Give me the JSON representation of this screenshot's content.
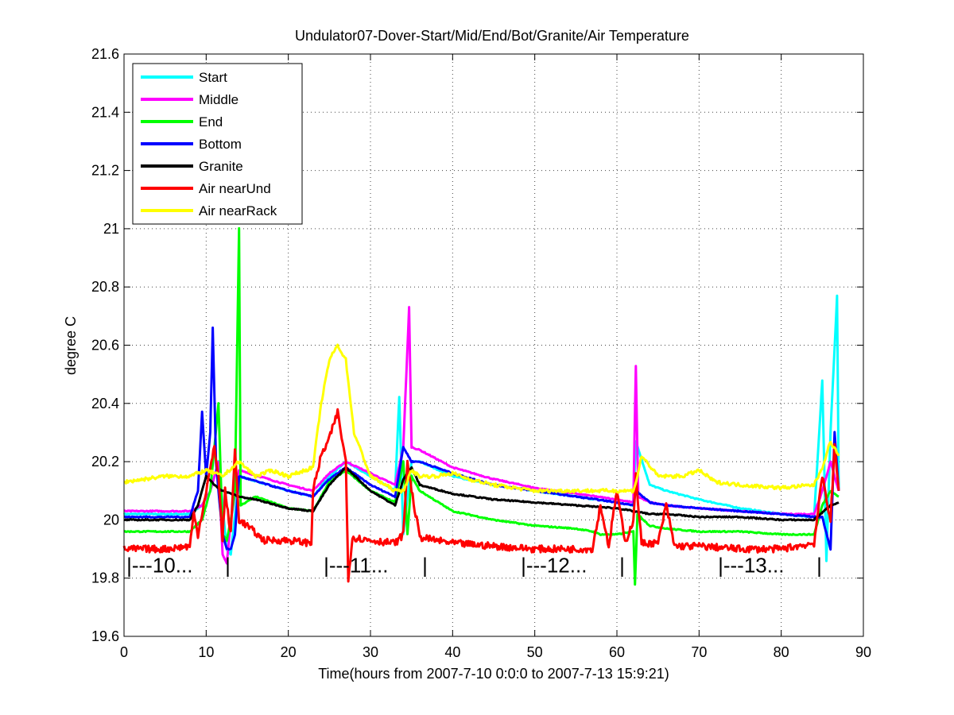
{
  "chart_data": {
    "type": "line",
    "title": "Undulator07-Dover-Start/Mid/End/Bot/Granite/Air Temperature",
    "xlabel": "Time(hours from 2007-7-10 0:0:0 to 2007-7-13 15:9:21)",
    "ylabel": "degree C",
    "xlim": [
      0,
      90
    ],
    "ylim": [
      19.6,
      21.6
    ],
    "xticks": [
      0,
      10,
      20,
      30,
      40,
      50,
      60,
      70,
      80,
      90
    ],
    "yticks": [
      19.6,
      19.8,
      20,
      20.2,
      20.4,
      20.6,
      20.8,
      21,
      21.2,
      21.4,
      21.6
    ],
    "grid": true,
    "legend_position": "top-left",
    "day_markers": [
      {
        "label": "|---10...",
        "x": 0.3,
        "y": 19.82
      },
      {
        "label": "|",
        "x": 12.3,
        "y": 19.82
      },
      {
        "label": "|---11...",
        "x": 24.3,
        "y": 19.82
      },
      {
        "label": "|",
        "x": 36.3,
        "y": 19.82
      },
      {
        "label": "|---12...",
        "x": 48.3,
        "y": 19.82
      },
      {
        "label": "|",
        "x": 60.3,
        "y": 19.82
      },
      {
        "label": "|---13...",
        "x": 72.3,
        "y": 19.82
      },
      {
        "label": "|",
        "x": 84.3,
        "y": 19.82
      }
    ],
    "series": [
      {
        "name": "Start",
        "color": "#00ffff",
        "x": [
          0,
          8,
          9.5,
          10.5,
          11.5,
          12,
          12.5,
          13,
          14,
          20,
          23,
          25,
          27,
          30,
          33,
          33.5,
          34,
          35,
          36,
          40,
          45,
          50,
          55,
          60,
          62,
          62.3,
          64,
          66,
          70,
          75,
          80,
          84,
          85,
          85.5,
          86,
          86.8,
          87
        ],
        "y": [
          20.02,
          20.02,
          20.05,
          20.1,
          20.2,
          20.05,
          19.9,
          19.88,
          20.15,
          20.1,
          20.08,
          20.15,
          20.2,
          20.15,
          20.1,
          20.42,
          19.95,
          20.2,
          20.2,
          20.15,
          20.12,
          20.1,
          20.08,
          20.06,
          20.05,
          20.27,
          20.12,
          20.1,
          20.07,
          20.04,
          20.02,
          20.01,
          20.48,
          19.86,
          20.3,
          20.77,
          20.1
        ]
      },
      {
        "name": "Middle",
        "color": "#ff00ff",
        "x": [
          0,
          8,
          9.5,
          10.5,
          11.5,
          12,
          12.5,
          13,
          14,
          20,
          23,
          25,
          27,
          30,
          33,
          34,
          34.7,
          35,
          36,
          40,
          45,
          50,
          55,
          60,
          62,
          62.3,
          62.6,
          64,
          66,
          70,
          75,
          80,
          84,
          85,
          86,
          87
        ],
        "y": [
          20.03,
          20.03,
          20.05,
          20.1,
          20.2,
          19.88,
          19.85,
          20.0,
          20.17,
          20.12,
          20.1,
          20.16,
          20.2,
          20.16,
          20.12,
          20.25,
          20.73,
          20.25,
          20.24,
          20.18,
          20.14,
          20.11,
          20.09,
          20.07,
          20.06,
          20.53,
          20.08,
          20.06,
          20.05,
          20.04,
          20.03,
          20.02,
          20.02,
          20.1,
          20.2,
          20.1
        ]
      },
      {
        "name": "End",
        "color": "#00ff00",
        "x": [
          0,
          8,
          9.5,
          10.5,
          11.5,
          12,
          12.5,
          13,
          13.5,
          14,
          14.2,
          16,
          20,
          23,
          25,
          27,
          30,
          33,
          34,
          34.5,
          35,
          36,
          40,
          45,
          50,
          55,
          57,
          58,
          60,
          62,
          62.2,
          62.5,
          64,
          66,
          70,
          75,
          80,
          84,
          85,
          86,
          87
        ],
        "y": [
          19.96,
          19.96,
          20.0,
          20.1,
          20.4,
          19.95,
          19.93,
          20.0,
          20.1,
          21.0,
          20.05,
          20.08,
          20.04,
          20.03,
          20.13,
          20.17,
          20.1,
          20.06,
          20.2,
          19.95,
          20.15,
          20.1,
          20.03,
          20.0,
          19.98,
          19.97,
          19.96,
          19.95,
          19.95,
          19.96,
          19.78,
          20.02,
          19.98,
          19.97,
          19.96,
          19.96,
          19.95,
          19.95,
          20.05,
          20.1,
          20.08
        ]
      },
      {
        "name": "Bottom",
        "color": "#0000ff",
        "x": [
          0,
          8,
          9,
          9.5,
          10,
          10.5,
          10.8,
          11.2,
          11.5,
          12,
          12.5,
          13,
          13.5,
          14,
          20,
          23,
          25,
          27,
          30,
          33,
          34,
          35,
          36,
          40,
          45,
          50,
          55,
          60,
          62,
          62.3,
          64,
          66,
          70,
          75,
          80,
          84,
          85,
          86,
          86.5,
          87
        ],
        "y": [
          20.01,
          20.01,
          20.1,
          20.37,
          20.15,
          20.3,
          20.66,
          20.2,
          20.1,
          19.95,
          19.9,
          19.9,
          19.95,
          20.15,
          20.1,
          20.08,
          20.14,
          20.18,
          20.12,
          20.08,
          20.25,
          20.2,
          20.2,
          20.16,
          20.12,
          20.1,
          20.08,
          20.06,
          20.05,
          20.1,
          20.06,
          20.05,
          20.04,
          20.03,
          20.02,
          20.01,
          20.01,
          19.9,
          20.3,
          20.1
        ]
      },
      {
        "name": "Granite",
        "color": "#000000",
        "x": [
          0,
          8,
          9,
          10,
          11,
          12,
          14,
          16,
          20,
          23,
          25,
          27,
          30,
          33,
          34,
          35,
          36,
          40,
          45,
          50,
          55,
          60,
          62,
          64,
          66,
          70,
          75,
          80,
          84,
          86,
          87
        ],
        "y": [
          20.0,
          20.0,
          20.05,
          20.15,
          20.12,
          20.1,
          20.08,
          20.07,
          20.04,
          20.03,
          20.12,
          20.18,
          20.1,
          20.05,
          20.14,
          20.18,
          20.12,
          20.09,
          20.07,
          20.06,
          20.05,
          20.04,
          20.03,
          20.02,
          20.02,
          20.01,
          20.01,
          20.0,
          20.0,
          20.05,
          20.06
        ]
      },
      {
        "name": "Air nearUnd",
        "color": "#ff0000",
        "x": [
          0,
          5,
          8,
          8.5,
          9,
          10,
          11,
          11.5,
          12,
          12.3,
          13,
          13.5,
          14,
          15,
          17,
          20,
          22.8,
          23,
          24,
          25,
          26,
          27,
          27.3,
          27.8,
          30,
          33,
          34,
          34.5,
          35,
          36,
          40,
          45,
          50,
          55,
          57,
          58,
          59,
          60,
          61,
          62,
          62.3,
          63,
          65,
          66,
          67,
          70,
          75,
          80,
          84,
          85,
          86,
          86.5,
          87
        ],
        "y": [
          19.9,
          19.9,
          19.91,
          20.02,
          19.95,
          20.1,
          20.25,
          20.15,
          19.93,
          20.1,
          19.95,
          20.24,
          20.0,
          19.98,
          19.93,
          19.93,
          19.92,
          20.1,
          20.22,
          20.28,
          20.37,
          20.2,
          19.8,
          19.94,
          19.93,
          19.92,
          19.95,
          20.2,
          20.1,
          19.94,
          19.92,
          19.91,
          19.9,
          19.9,
          19.9,
          20.05,
          19.91,
          20.1,
          19.92,
          20.0,
          20.15,
          19.92,
          19.92,
          20.05,
          19.91,
          19.91,
          19.9,
          19.9,
          19.92,
          20.15,
          20.0,
          20.25,
          20.1
        ]
      },
      {
        "name": "Air nearRack",
        "color": "#ffff00",
        "x": [
          0,
          5,
          8,
          10,
          12,
          14,
          16,
          18,
          20,
          23,
          24,
          25,
          26,
          27,
          28,
          30,
          33,
          34,
          35,
          36,
          38,
          40,
          42,
          45,
          50,
          55,
          60,
          62,
          62.5,
          63,
          65,
          68,
          70,
          72,
          75,
          80,
          84,
          85,
          86,
          87
        ],
        "y": [
          20.13,
          20.15,
          20.15,
          20.17,
          20.15,
          20.2,
          20.15,
          20.17,
          20.15,
          20.18,
          20.4,
          20.55,
          20.6,
          20.55,
          20.3,
          20.15,
          20.1,
          20.1,
          20.17,
          20.15,
          20.15,
          20.16,
          20.14,
          20.12,
          20.1,
          20.1,
          20.1,
          20.1,
          20.15,
          20.22,
          20.15,
          20.15,
          20.17,
          20.13,
          20.12,
          20.11,
          20.12,
          20.18,
          20.27,
          20.22
        ]
      }
    ]
  }
}
